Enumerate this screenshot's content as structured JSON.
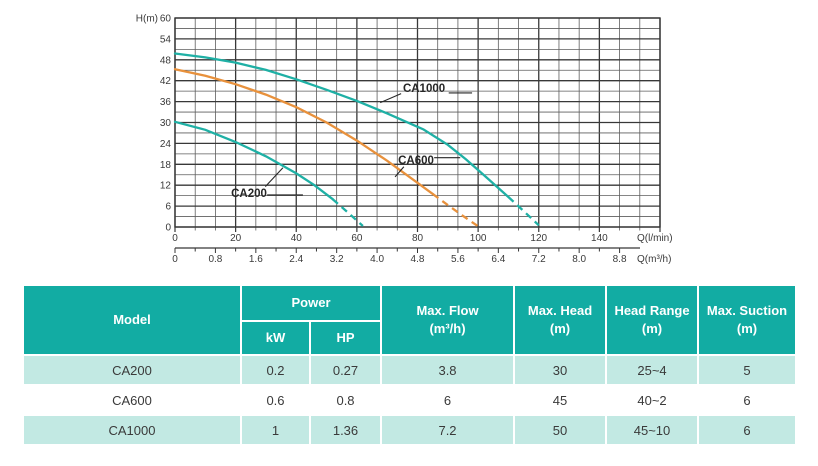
{
  "page": {
    "background": "#ffffff"
  },
  "chart_data": {
    "type": "line",
    "title": "",
    "ylabel": "H(m)",
    "xlabel": "Q(l/min)",
    "x2label": "Q(m³/h)",
    "ylim": [
      0,
      60
    ],
    "xlim_lmin": [
      0,
      160
    ],
    "y_tick_step": 6,
    "x_tick_step": 20,
    "x2_tick_step": 0.8,
    "x2_scale_lmin_per_unit": 16.6667,
    "y_ticks": [
      "0",
      "6",
      "12",
      "18",
      "24",
      "30",
      "36",
      "42",
      "48",
      "54",
      "60"
    ],
    "x_ticks": [
      "0",
      "20",
      "40",
      "60",
      "80",
      "100",
      "120",
      "140"
    ],
    "x2_ticks": [
      "0",
      "0.8",
      "1.6",
      "2.4",
      "3.2",
      "4.0",
      "4.8",
      "5.6",
      "6.4",
      "7.2",
      "8.0",
      "8.8"
    ],
    "grid": {
      "minor_color": "#5e5e5e",
      "major_color": "#383838"
    },
    "annotation_color": "#262626",
    "series": [
      {
        "name": "CA200",
        "color": "#1FB0A5",
        "dash_from": 52,
        "points": [
          [
            0,
            30.2
          ],
          [
            10,
            27.9
          ],
          [
            20,
            24.4
          ],
          [
            30,
            20.3
          ],
          [
            40,
            15.4
          ],
          [
            46,
            12.0
          ],
          [
            52,
            8.0
          ],
          [
            57,
            4.2
          ],
          [
            62,
            0.3
          ]
        ],
        "label_at": [
          18.5,
          8.6
        ],
        "leader": [
          [
            29.8,
            11.6
          ],
          [
            35.6,
            17.0
          ]
        ],
        "tail": [
          [
            30.4,
            9.2
          ],
          [
            42.2,
            9.2
          ]
        ]
      },
      {
        "name": "CA600",
        "color": "#E8913C",
        "dash_from": 85,
        "points": [
          [
            0,
            45.3
          ],
          [
            10,
            43.4
          ],
          [
            20,
            41.0
          ],
          [
            30,
            38.0
          ],
          [
            40,
            34.4
          ],
          [
            50,
            30.0
          ],
          [
            60,
            24.8
          ],
          [
            70,
            19.0
          ],
          [
            80,
            12.7
          ],
          [
            85,
            9.5
          ],
          [
            90,
            6.3
          ],
          [
            95,
            3.2
          ],
          [
            100,
            0.2
          ]
        ],
        "label_at": [
          73.6,
          18.1
        ],
        "leader": [
          [
            72.6,
            14.4
          ],
          [
            75.5,
            17.3
          ]
        ],
        "tail": [
          [
            85.5,
            19.9
          ],
          [
            94.1,
            19.9
          ]
        ]
      },
      {
        "name": "CA1000",
        "color": "#1FB0A5",
        "dash_from": 110,
        "points": [
          [
            0,
            49.8
          ],
          [
            10,
            48.7
          ],
          [
            20,
            47.2
          ],
          [
            30,
            45.1
          ],
          [
            40,
            42.4
          ],
          [
            50,
            39.4
          ],
          [
            60,
            36.2
          ],
          [
            70,
            32.6
          ],
          [
            82,
            28.0
          ],
          [
            90,
            23.6
          ],
          [
            96,
            19.4
          ],
          [
            102,
            14.8
          ],
          [
            110,
            8.6
          ],
          [
            115,
            4.6
          ],
          [
            120,
            0.5
          ]
        ],
        "label_at": [
          75.2,
          38.8
        ],
        "leader": [
          [
            67.7,
            35.7
          ],
          [
            74.6,
            38.3
          ]
        ],
        "tail": [
          [
            90.3,
            38.5
          ],
          [
            98.0,
            38.5
          ]
        ]
      }
    ]
  },
  "table": {
    "colors": {
      "header_bg": "#12ACA3",
      "header_text": "#ffffff",
      "row_alt_bg": "#C2E9E3",
      "row_bg": "#ffffff",
      "row_text": "#3a3a3a"
    },
    "header": {
      "model": "Model",
      "power": "Power",
      "kw": "kW",
      "hp": "HP",
      "max_flow": "Max. Flow\n(m³/h)",
      "max_head": "Max. Head\n(m)",
      "head_range": "Head Range\n(m)",
      "max_suction": "Max. Suction\n(m)"
    },
    "rows": [
      {
        "model": "CA200",
        "kw": "0.2",
        "hp": "0.27",
        "max_flow": "3.8",
        "max_head": "30",
        "head_range": "25~4",
        "max_suction": "5"
      },
      {
        "model": "CA600",
        "kw": "0.6",
        "hp": "0.8",
        "max_flow": "6",
        "max_head": "45",
        "head_range": "40~2",
        "max_suction": "6"
      },
      {
        "model": "CA1000",
        "kw": "1",
        "hp": "1.36",
        "max_flow": "7.2",
        "max_head": "50",
        "head_range": "45~10",
        "max_suction": "6"
      }
    ]
  }
}
